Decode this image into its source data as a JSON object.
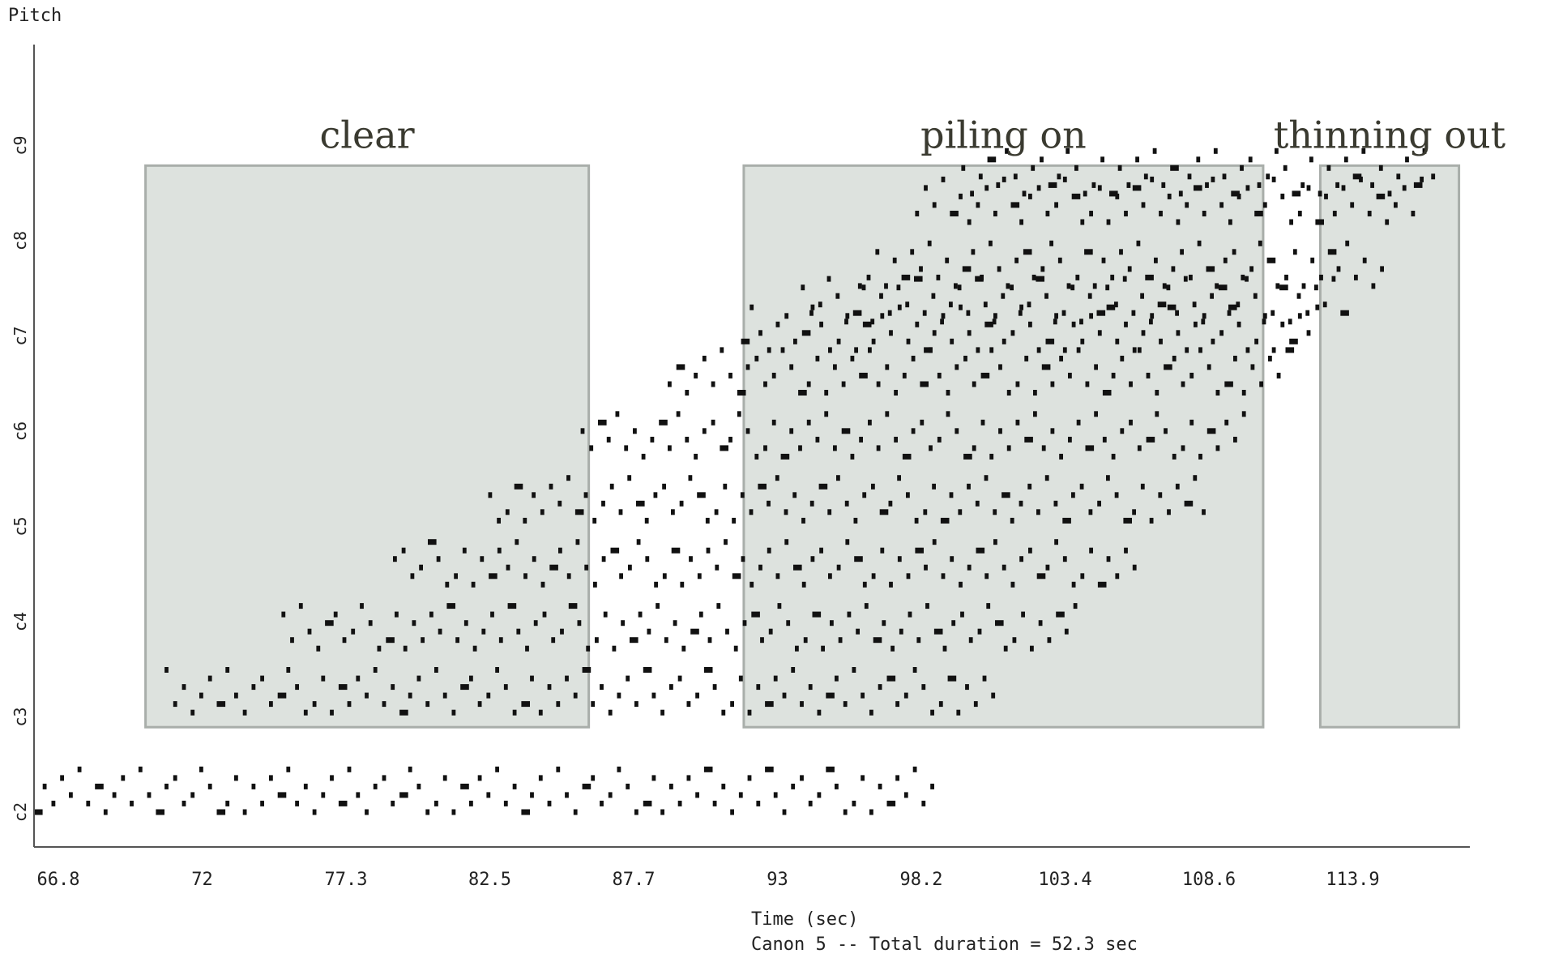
{
  "chart_data": {
    "type": "scatter",
    "title": "",
    "ylabel": "Pitch",
    "xlabel": "Time (sec)",
    "caption": "Canon 5 -- Total duration = 52.3 sec",
    "x_ticks": [
      "66.8",
      "72",
      "77.3",
      "82.5",
      "87.7",
      "93",
      "98.2",
      "103.4",
      "108.6",
      "113.9"
    ],
    "y_ticks": [
      "c2",
      "c3",
      "c4",
      "c5",
      "c6",
      "c7",
      "c8",
      "c9"
    ],
    "xlim": [
      66.8,
      119.6
    ],
    "ylim": [
      24,
      120
    ],
    "grid": false,
    "regions": [
      {
        "label": "clear",
        "x0": 70.9,
        "x1": 87.2,
        "y0": 38,
        "y1": 117
      },
      {
        "label": "piling on",
        "x0": 92.9,
        "x1": 112,
        "y0": 38,
        "y1": 117
      },
      {
        "label": "thinning out",
        "x0": 114.1,
        "x1": 119.2,
        "y0": 38,
        "y1": 117
      }
    ],
    "series": [
      {
        "start": 66.8,
        "end": 99.8,
        "base": 26
      },
      {
        "start": 71.6,
        "end": 102.3,
        "base": 40
      },
      {
        "start": 75.9,
        "end": 105.2,
        "base": 49
      },
      {
        "start": 80.0,
        "end": 107.3,
        "base": 58
      },
      {
        "start": 83.5,
        "end": 109.8,
        "base": 67
      },
      {
        "start": 86.9,
        "end": 111.4,
        "base": 76
      },
      {
        "start": 90.1,
        "end": 113.0,
        "base": 85
      },
      {
        "start": 92.8,
        "end": 114.0,
        "base": 91
      },
      {
        "start": 95.0,
        "end": 115.0,
        "base": 95
      },
      {
        "start": 97.1,
        "end": 116.4,
        "base": 100
      },
      {
        "start": 99.2,
        "end": 118.0,
        "base": 109
      },
      {
        "start": 100.9,
        "end": 118.4,
        "base": 113
      }
    ]
  },
  "colors": {
    "region_fill": "#dde2de",
    "region_stroke": "#a9aeaa",
    "note": "#111111",
    "axis": "#555555"
  }
}
